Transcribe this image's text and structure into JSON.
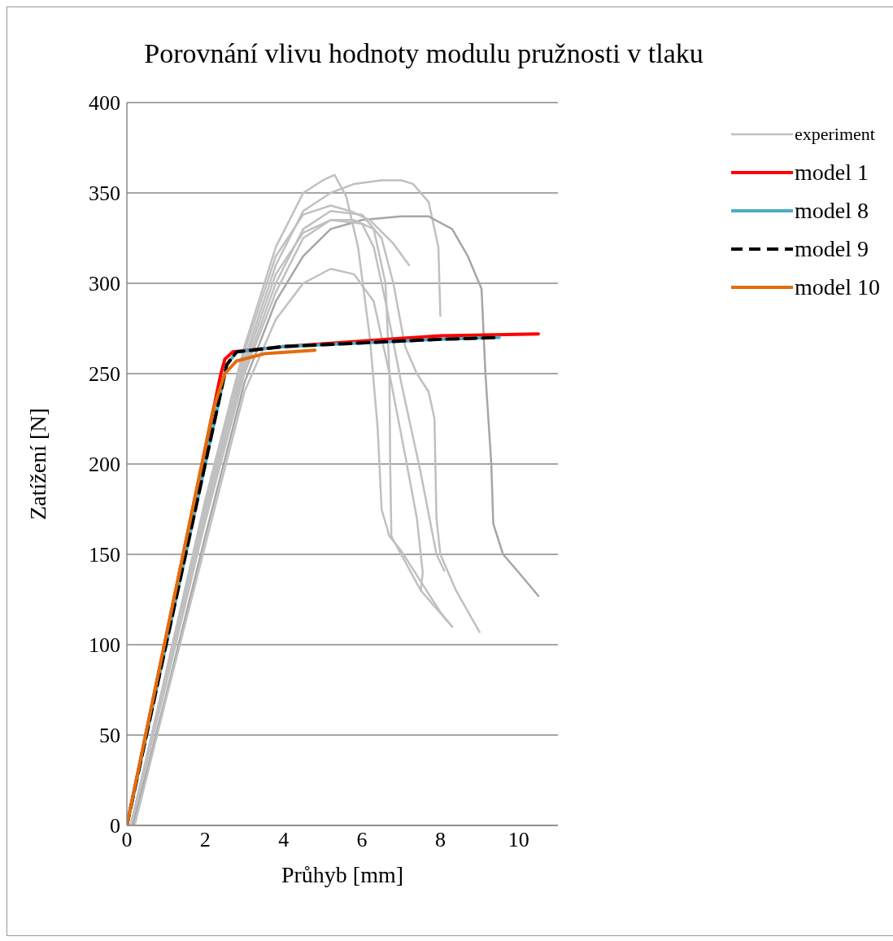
{
  "chart_data": {
    "type": "line",
    "title": "Porovnání vlivu hodnoty modulu pružnosti v tlaku",
    "xlabel": "Průhyb [mm]",
    "ylabel": "Zatížení [N]",
    "xlim": [
      0,
      11
    ],
    "xticks": [
      0,
      2,
      4,
      6,
      8,
      10
    ],
    "ylim": [
      0,
      400
    ],
    "yticks": [
      0,
      50,
      100,
      150,
      200,
      250,
      300,
      350,
      400
    ],
    "grid": "y",
    "legend": "right",
    "marker": "none",
    "series": [
      {
        "name": "experiment",
        "color": "#c0c0c0",
        "line_style": "solid",
        "x": [
          0.1,
          1,
          2,
          3,
          3.8,
          4.5,
          5.0,
          5.3,
          5.6,
          5.9,
          6.2,
          6.4,
          6.5,
          6.7,
          7.0,
          7.5,
          8.0,
          8.3
        ],
        "values": [
          0,
          85,
          180,
          265,
          320,
          350,
          357,
          360,
          348,
          320,
          270,
          220,
          175,
          160,
          152,
          135,
          118,
          110
        ]
      },
      {
        "color": "#c0c0c0",
        "line_style": "solid",
        "x": [
          0.1,
          1,
          2,
          3,
          3.8,
          4.5,
          5.2,
          5.8,
          6.5,
          7.0,
          7.3,
          7.7,
          7.95,
          8.0
        ],
        "values": [
          0,
          82,
          175,
          258,
          310,
          340,
          350,
          355,
          357,
          357,
          355,
          345,
          320,
          282
        ]
      },
      {
        "color": "#a6a6a6",
        "line_style": "solid",
        "x": [
          0.15,
          1,
          2,
          3,
          3.8,
          4.5,
          5.2,
          6,
          7,
          7.7,
          8.3,
          8.7,
          9.05,
          9.15,
          9.3,
          9.35,
          9.6,
          10,
          10.5
        ],
        "values": [
          0,
          72,
          160,
          245,
          290,
          315,
          330,
          335,
          337,
          337,
          330,
          315,
          297,
          250,
          200,
          167,
          150,
          140,
          127
        ]
      },
      {
        "color": "#c0c0c0",
        "line_style": "solid",
        "x": [
          0.1,
          1,
          2,
          3,
          3.8,
          4.5,
          5.2,
          5.7,
          6.2,
          6.8,
          7.2
        ],
        "values": [
          0,
          84,
          178,
          262,
          315,
          338,
          343,
          340,
          335,
          322,
          310
        ]
      },
      {
        "color": "#c0c0c0",
        "line_style": "solid",
        "x": [
          0.1,
          1,
          2,
          3,
          3.8,
          4.5,
          5.2,
          5.8,
          6.3,
          6.6,
          6.7,
          6.72,
          6.75,
          7,
          7.5,
          8.3
        ],
        "values": [
          0,
          80,
          172,
          255,
          305,
          328,
          335,
          335,
          330,
          300,
          250,
          200,
          160,
          150,
          130,
          110
        ]
      },
      {
        "color": "#c0c0c0",
        "line_style": "solid",
        "x": [
          0.1,
          1,
          2,
          3,
          3.8,
          4.5,
          5.2,
          6,
          6.3,
          6.6,
          7.0,
          7.5,
          7.9,
          8.1
        ],
        "values": [
          0,
          78,
          168,
          250,
          295,
          325,
          335,
          333,
          320,
          290,
          245,
          195,
          150,
          141
        ]
      },
      {
        "color": "#c0c0c0",
        "line_style": "solid",
        "x": [
          0.2,
          1,
          2,
          3,
          3.8,
          4.5,
          5.2,
          5.8,
          6.3,
          6.7,
          7.1,
          7.4,
          7.55,
          7.5
        ],
        "values": [
          0,
          70,
          155,
          240,
          280,
          300,
          308,
          305,
          290,
          250,
          205,
          170,
          140,
          130
        ]
      },
      {
        "color": "#c0c0c0",
        "line_style": "solid",
        "x": [
          0.1,
          1,
          2,
          3,
          3.8,
          4.5,
          5.2,
          6,
          6.5,
          6.8,
          7.1,
          7.4,
          7.7,
          7.85,
          7.9,
          8.0,
          8.4,
          9.0
        ],
        "values": [
          0,
          80,
          170,
          252,
          300,
          330,
          340,
          338,
          325,
          300,
          265,
          250,
          240,
          225,
          170,
          150,
          130,
          107
        ]
      },
      {
        "name": "model 1",
        "color": "#ff0000",
        "line_style": "solid",
        "x": [
          0,
          2.4,
          2.5,
          2.7,
          4,
          6,
          8,
          10.5
        ],
        "values": [
          0,
          250,
          258,
          262,
          265,
          268,
          271,
          272
        ]
      },
      {
        "name": "model 8",
        "color": "#4bacc6",
        "line_style": "solid",
        "x": [
          0,
          2.4,
          2.55,
          2.8,
          4,
          6,
          8,
          9.5
        ],
        "values": [
          0,
          240,
          255,
          262,
          265,
          267,
          269,
          270
        ]
      },
      {
        "name": "model 9",
        "color": "#000000",
        "line_style": "dashed",
        "x": [
          0,
          2.4,
          2.55,
          2.8,
          4,
          6,
          8,
          9.5
        ],
        "values": [
          0,
          240,
          255,
          262,
          265,
          267,
          269,
          270
        ]
      },
      {
        "name": "model 10",
        "color": "#e46c0a",
        "line_style": "solid",
        "x": [
          0,
          2.2,
          2.5,
          2.8,
          3.5,
          4.8
        ],
        "values": [
          0,
          230,
          250,
          257,
          261,
          263
        ]
      }
    ]
  }
}
